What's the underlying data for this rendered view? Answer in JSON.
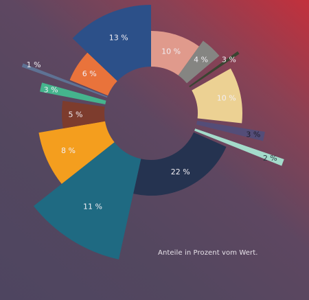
{
  "caption": "Anteile in Prozent vom Wert.",
  "chart_data": {
    "type": "pie",
    "variant": "variable-radius donut",
    "start_angle_deg": 0,
    "direction": "clockwise",
    "background_colors": [
      "#c3303c",
      "#53475f"
    ],
    "label_color": "#f2eff4",
    "slices": [
      {
        "label": "10 %",
        "value": 10,
        "color": "#e09a8c"
      },
      {
        "label": "4 %",
        "value": 4,
        "color": "#858582"
      },
      {
        "label": "3 %",
        "value": 3,
        "color": "#3a4431"
      },
      {
        "label": "10 %",
        "value": 10,
        "color": "#ecd193"
      },
      {
        "label": "3 %",
        "value": 3,
        "color": "#544d78",
        "label_color": "#1e1c2a"
      },
      {
        "label": "2 %",
        "value": 2,
        "color": "#a4dbcb",
        "label_color": "#2c3a42"
      },
      {
        "label": "22 %",
        "value": 22,
        "color": "#253350"
      },
      {
        "label": "11 %",
        "value": 11,
        "color": "#1f6a82"
      },
      {
        "label": "8 %",
        "value": 8,
        "color": "#f49e1e"
      },
      {
        "label": "5 %",
        "value": 5,
        "color": "#7d3c2d"
      },
      {
        "label": "3 %",
        "value": 3,
        "color": "#45b48d"
      },
      {
        "label": "1 %",
        "value": 1,
        "color": "#5e7294"
      },
      {
        "label": "6 %",
        "value": 6,
        "color": "#e9733b"
      },
      {
        "label": "13 %",
        "value": 13,
        "color": "#2c5089"
      }
    ]
  }
}
